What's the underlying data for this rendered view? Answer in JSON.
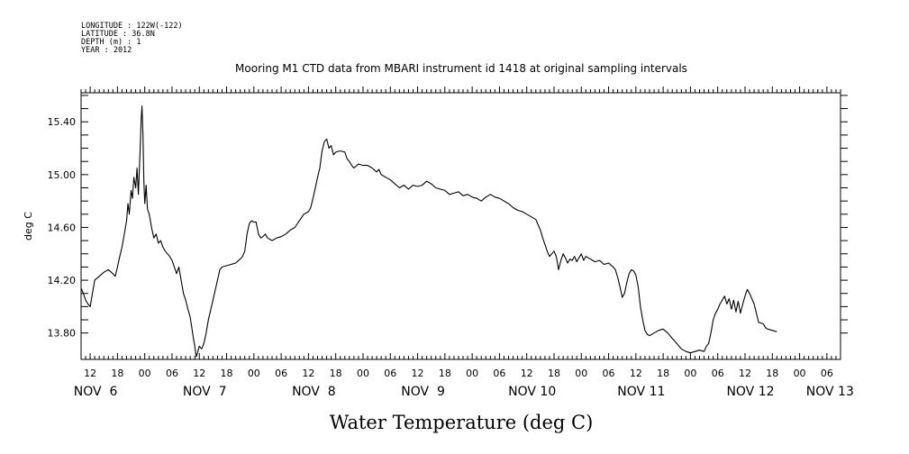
{
  "metadata_lines": [
    "LONGITUDE : 122W(-122)",
    "LATITUDE : 36.8N",
    "DEPTH (m) : 1",
    "YEAR : 2012"
  ],
  "chart_data": {
    "type": "line",
    "title": "Mooring M1 CTD data from MBARI instrument id 1418 at original sampling intervals",
    "ylabel": "deg C",
    "caption": "Water Temperature (deg C)",
    "x_unit": "hours since 2012-11-06 00:00",
    "xlim": [
      10,
      177
    ],
    "ylim": [
      13.6,
      15.62
    ],
    "yticks": [
      13.8,
      14.2,
      14.6,
      15.0,
      15.4
    ],
    "ytick_labels": [
      "13.80",
      "14.20",
      "14.60",
      "15.00",
      "15.40"
    ],
    "xtick_hours": [
      12,
      18,
      24,
      30,
      36,
      42,
      48,
      54,
      60,
      66,
      72,
      78,
      84,
      90,
      96,
      102,
      108,
      114,
      120,
      126,
      132,
      138,
      144,
      150,
      156,
      162,
      168,
      174
    ],
    "xtick_labels": [
      "12",
      "18",
      "00",
      "06",
      "12",
      "18",
      "00",
      "06",
      "12",
      "18",
      "00",
      "06",
      "12",
      "18",
      "00",
      "06",
      "12",
      "18",
      "00",
      "06",
      "12",
      "18",
      "00",
      "06",
      "12",
      "18",
      "00",
      "06"
    ],
    "day_labels": [
      {
        "hour": 12,
        "text": "NOV  6"
      },
      {
        "hour": 36,
        "text": "NOV  7"
      },
      {
        "hour": 60,
        "text": "NOV  8"
      },
      {
        "hour": 84,
        "text": "NOV  9"
      },
      {
        "hour": 108,
        "text": "NOV 10"
      },
      {
        "hour": 132,
        "text": "NOV 11"
      },
      {
        "hour": 156,
        "text": "NOV 12"
      },
      {
        "hour": 173.5,
        "text": "NOV 13"
      }
    ],
    "series": [
      {
        "color": "#000000",
        "points": [
          [
            10,
            14.14
          ],
          [
            10.5,
            14.1
          ],
          [
            11,
            14.05
          ],
          [
            11.5,
            14.02
          ],
          [
            12,
            14.0
          ],
          [
            12.5,
            14.1
          ],
          [
            13,
            14.2
          ],
          [
            14,
            14.23
          ],
          [
            15,
            14.26
          ],
          [
            16,
            14.28
          ],
          [
            17,
            14.25
          ],
          [
            17.5,
            14.23
          ],
          [
            18,
            14.3
          ],
          [
            18.5,
            14.38
          ],
          [
            19,
            14.45
          ],
          [
            19.5,
            14.55
          ],
          [
            20,
            14.65
          ],
          [
            20.3,
            14.78
          ],
          [
            20.6,
            14.7
          ],
          [
            21,
            14.88
          ],
          [
            21.3,
            14.82
          ],
          [
            21.6,
            14.98
          ],
          [
            22,
            14.9
          ],
          [
            22.3,
            15.05
          ],
          [
            22.6,
            14.85
          ],
          [
            23,
            15.2
          ],
          [
            23.2,
            15.4
          ],
          [
            23.4,
            15.52
          ],
          [
            23.6,
            15.3
          ],
          [
            23.8,
            14.95
          ],
          [
            24,
            14.78
          ],
          [
            24.3,
            14.92
          ],
          [
            24.6,
            14.74
          ],
          [
            25,
            14.7
          ],
          [
            25.5,
            14.6
          ],
          [
            26,
            14.52
          ],
          [
            26.5,
            14.55
          ],
          [
            27,
            14.48
          ],
          [
            27.5,
            14.5
          ],
          [
            28,
            14.45
          ],
          [
            28.5,
            14.42
          ],
          [
            29,
            14.4
          ],
          [
            29.5,
            14.38
          ],
          [
            30,
            14.35
          ],
          [
            30.5,
            14.3
          ],
          [
            31,
            14.25
          ],
          [
            31.5,
            14.3
          ],
          [
            32,
            14.2
          ],
          [
            32.5,
            14.1
          ],
          [
            33,
            14.05
          ],
          [
            33.5,
            13.98
          ],
          [
            34,
            13.92
          ],
          [
            34.3,
            13.85
          ],
          [
            34.6,
            13.78
          ],
          [
            35,
            13.7
          ],
          [
            35.3,
            13.62
          ],
          [
            35.6,
            13.65
          ],
          [
            36,
            13.7
          ],
          [
            36.5,
            13.68
          ],
          [
            37,
            13.72
          ],
          [
            37.5,
            13.8
          ],
          [
            38,
            13.9
          ],
          [
            39,
            14.05
          ],
          [
            40,
            14.2
          ],
          [
            40.5,
            14.28
          ],
          [
            41,
            14.3
          ],
          [
            42,
            14.31
          ],
          [
            43,
            14.32
          ],
          [
            44,
            14.33
          ],
          [
            45,
            14.36
          ],
          [
            45.5,
            14.38
          ],
          [
            46,
            14.42
          ],
          [
            46.5,
            14.55
          ],
          [
            47,
            14.63
          ],
          [
            47.5,
            14.65
          ],
          [
            48,
            14.64
          ],
          [
            48.5,
            14.64
          ],
          [
            49,
            14.55
          ],
          [
            49.5,
            14.52
          ],
          [
            50,
            14.53
          ],
          [
            50.5,
            14.55
          ],
          [
            51,
            14.52
          ],
          [
            52,
            14.5
          ],
          [
            53,
            14.52
          ],
          [
            54,
            14.53
          ],
          [
            55,
            14.55
          ],
          [
            56,
            14.58
          ],
          [
            57,
            14.6
          ],
          [
            58,
            14.65
          ],
          [
            59,
            14.7
          ],
          [
            60,
            14.72
          ],
          [
            60.5,
            14.75
          ],
          [
            61,
            14.82
          ],
          [
            61.5,
            14.9
          ],
          [
            62,
            14.98
          ],
          [
            62.5,
            15.05
          ],
          [
            63,
            15.18
          ],
          [
            63.5,
            15.25
          ],
          [
            64,
            15.27
          ],
          [
            64.5,
            15.2
          ],
          [
            65,
            15.22
          ],
          [
            65.5,
            15.15
          ],
          [
            66,
            15.17
          ],
          [
            67,
            15.18
          ],
          [
            68,
            15.17
          ],
          [
            68.5,
            15.12
          ],
          [
            69,
            15.1
          ],
          [
            69.5,
            15.07
          ],
          [
            70,
            15.05
          ],
          [
            71,
            15.08
          ],
          [
            72,
            15.07
          ],
          [
            73,
            15.07
          ],
          [
            74,
            15.05
          ],
          [
            75,
            15.02
          ],
          [
            75.5,
            15.04
          ],
          [
            76,
            15.0
          ],
          [
            77,
            14.98
          ],
          [
            78,
            14.96
          ],
          [
            79,
            14.93
          ],
          [
            80,
            14.9
          ],
          [
            81,
            14.92
          ],
          [
            82,
            14.89
          ],
          [
            83,
            14.92
          ],
          [
            84,
            14.91
          ],
          [
            85,
            14.92
          ],
          [
            86,
            14.95
          ],
          [
            87,
            14.93
          ],
          [
            88,
            14.9
          ],
          [
            89,
            14.89
          ],
          [
            90,
            14.88
          ],
          [
            91,
            14.85
          ],
          [
            92,
            14.86
          ],
          [
            93,
            14.87
          ],
          [
            94,
            14.84
          ],
          [
            95,
            14.85
          ],
          [
            96,
            14.83
          ],
          [
            97,
            14.82
          ],
          [
            98,
            14.8
          ],
          [
            99,
            14.83
          ],
          [
            100,
            14.85
          ],
          [
            101,
            14.83
          ],
          [
            102,
            14.82
          ],
          [
            103,
            14.8
          ],
          [
            104,
            14.78
          ],
          [
            105,
            14.75
          ],
          [
            106,
            14.73
          ],
          [
            107,
            14.72
          ],
          [
            108,
            14.7
          ],
          [
            109,
            14.68
          ],
          [
            110,
            14.66
          ],
          [
            110.5,
            14.62
          ],
          [
            111,
            14.58
          ],
          [
            111.5,
            14.52
          ],
          [
            112,
            14.47
          ],
          [
            112.5,
            14.42
          ],
          [
            113,
            14.38
          ],
          [
            113.5,
            14.4
          ],
          [
            114,
            14.42
          ],
          [
            114.5,
            14.38
          ],
          [
            115,
            14.28
          ],
          [
            115.5,
            14.35
          ],
          [
            116,
            14.4
          ],
          [
            116.5,
            14.37
          ],
          [
            117,
            14.33
          ],
          [
            117.5,
            14.36
          ],
          [
            118,
            14.35
          ],
          [
            118.5,
            14.38
          ],
          [
            119,
            14.34
          ],
          [
            119.5,
            14.37
          ],
          [
            120,
            14.4
          ],
          [
            120.5,
            14.35
          ],
          [
            121,
            14.38
          ],
          [
            122,
            14.36
          ],
          [
            123,
            14.34
          ],
          [
            124,
            14.35
          ],
          [
            125,
            14.32
          ],
          [
            126,
            14.33
          ],
          [
            127,
            14.3
          ],
          [
            127.5,
            14.28
          ],
          [
            128,
            14.22
          ],
          [
            128.5,
            14.15
          ],
          [
            129,
            14.07
          ],
          [
            129.5,
            14.1
          ],
          [
            130,
            14.18
          ],
          [
            130.5,
            14.25
          ],
          [
            131,
            14.28
          ],
          [
            131.5,
            14.27
          ],
          [
            132,
            14.24
          ],
          [
            132.5,
            14.15
          ],
          [
            133,
            14.0
          ],
          [
            133.5,
            13.9
          ],
          [
            134,
            13.82
          ],
          [
            134.5,
            13.79
          ],
          [
            135,
            13.78
          ],
          [
            136,
            13.8
          ],
          [
            137,
            13.82
          ],
          [
            138,
            13.83
          ],
          [
            139,
            13.8
          ],
          [
            140,
            13.76
          ],
          [
            141,
            13.72
          ],
          [
            142,
            13.68
          ],
          [
            143,
            13.66
          ],
          [
            144,
            13.65
          ],
          [
            145,
            13.66
          ],
          [
            146,
            13.67
          ],
          [
            147,
            13.66
          ],
          [
            147.5,
            13.7
          ],
          [
            148,
            13.72
          ],
          [
            148.5,
            13.8
          ],
          [
            149,
            13.9
          ],
          [
            149.5,
            13.95
          ],
          [
            150,
            13.98
          ],
          [
            150.5,
            14.02
          ],
          [
            151,
            14.05
          ],
          [
            151.5,
            14.08
          ],
          [
            152,
            14.02
          ],
          [
            152.5,
            14.06
          ],
          [
            153,
            13.98
          ],
          [
            153.5,
            14.05
          ],
          [
            154,
            13.96
          ],
          [
            154.5,
            14.04
          ],
          [
            155,
            13.95
          ],
          [
            155.5,
            14.02
          ],
          [
            156,
            14.08
          ],
          [
            156.5,
            14.13
          ],
          [
            157,
            14.1
          ],
          [
            157.5,
            14.06
          ],
          [
            158,
            14.02
          ],
          [
            158.5,
            13.95
          ],
          [
            159,
            13.88
          ],
          [
            160,
            13.87
          ],
          [
            160.5,
            13.84
          ],
          [
            161,
            13.83
          ],
          [
            162,
            13.82
          ],
          [
            163,
            13.81
          ]
        ]
      }
    ]
  }
}
